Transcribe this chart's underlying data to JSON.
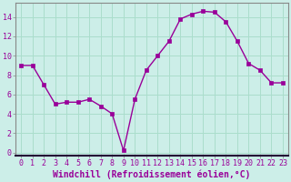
{
  "x": [
    0,
    1,
    2,
    3,
    4,
    5,
    6,
    7,
    8,
    9,
    10,
    11,
    12,
    13,
    14,
    15,
    16,
    17,
    18,
    19,
    20,
    21,
    22,
    23
  ],
  "y": [
    9,
    9,
    7,
    5,
    5.2,
    5.2,
    5.5,
    4.8,
    4,
    0.2,
    5.5,
    8.5,
    10,
    11.5,
    13.8,
    14.3,
    14.6,
    14.5,
    13.5,
    11.5,
    9.2,
    8.5,
    7.2,
    7.2
  ],
  "line_color": "#990099",
  "marker": "s",
  "markersize": 2.5,
  "linewidth": 1.0,
  "bg_color": "#cceee8",
  "grid_color": "#aaddcc",
  "separator_color": "#220033",
  "xlabel": "Windchill (Refroidissement éolien,°C)",
  "xlabel_fontsize": 7,
  "tick_fontsize": 6,
  "ylabel_ticks": [
    0,
    2,
    4,
    6,
    8,
    10,
    12,
    14
  ],
  "xlim": [
    -0.5,
    23.5
  ],
  "ylim": [
    -0.3,
    15.5
  ],
  "tick_color": "#990099",
  "spine_color": "#888888"
}
